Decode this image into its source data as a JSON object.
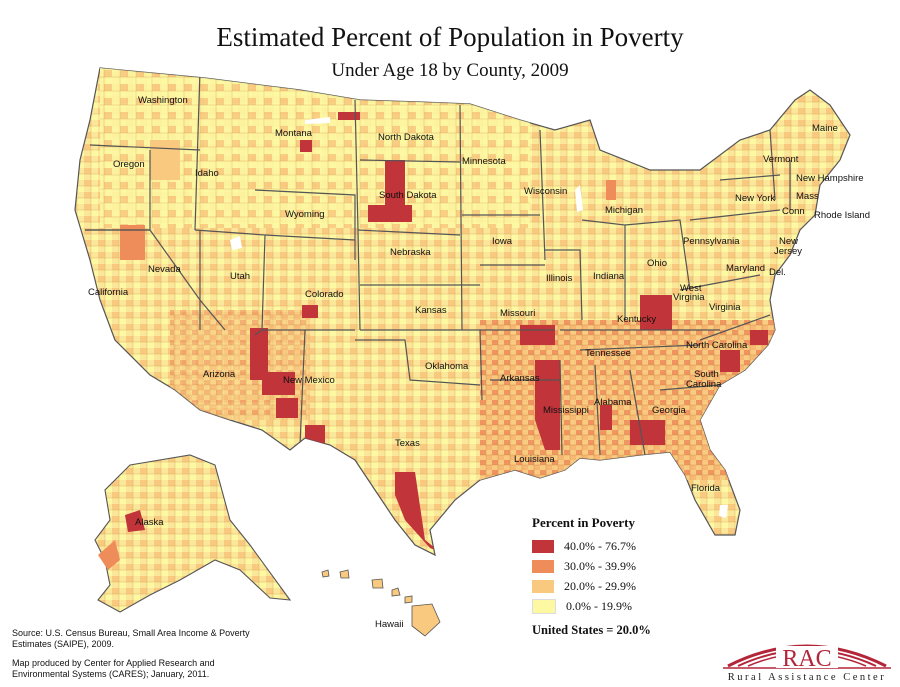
{
  "title": "Estimated Percent of Population in Poverty",
  "subtitle": "Under Age 18 by County, 2009",
  "colors": {
    "cat1": "#c0343a",
    "cat2": "#ef8d5a",
    "cat3": "#f8c97e",
    "cat4": "#fdf8a2",
    "border": "#555555",
    "logo_red": "#b3263a"
  },
  "legend": {
    "title": "Percent in Poverty",
    "items": [
      {
        "label": "40.0% - 76.7%",
        "color": "#c0343a"
      },
      {
        "label": "30.0% - 39.9%",
        "color": "#ef8d5a"
      },
      {
        "label": "20.0% - 29.9%",
        "color": "#f8c97e"
      },
      {
        "label": "0.0% - 19.9%",
        "color": "#fdf8a2"
      }
    ],
    "us_total": "United States = 20.0%"
  },
  "states": {
    "washington": "Washington",
    "oregon": "Oregon",
    "california": "California",
    "idaho": "Idaho",
    "nevada": "Nevada",
    "montana": "Montana",
    "wyoming": "Wyoming",
    "utah": "Utah",
    "arizona": "Arizona",
    "colorado": "Colorado",
    "new_mexico": "New Mexico",
    "north_dakota": "North Dakota",
    "south_dakota": "South Dakota",
    "nebraska": "Nebraska",
    "kansas": "Kansas",
    "oklahoma": "Oklahoma",
    "texas": "Texas",
    "minnesota": "Minnesota",
    "iowa": "Iowa",
    "missouri": "Missouri",
    "arkansas": "Arkansas",
    "louisiana": "Louisiana",
    "wisconsin": "Wisconsin",
    "illinois": "Illinois",
    "michigan": "Michigan",
    "indiana": "Indiana",
    "ohio": "Ohio",
    "kentucky": "Kentucky",
    "tennessee": "Tennessee",
    "mississippi": "Mississippi",
    "alabama": "Alabama",
    "georgia": "Georgia",
    "florida": "Florida",
    "south": "South",
    "carolina": "Carolina",
    "north_carolina": "North Carolina",
    "virginia": "Virginia",
    "west": "West",
    "virginia2": "Virginia",
    "pennsylvania": "Pennsylvania",
    "new_york": "New York",
    "maryland": "Maryland",
    "new": "New",
    "jersey": "Jersey",
    "del": "Del.",
    "conn": "Conn",
    "rhode_island": "Rhode Island",
    "mass": "Mass",
    "vermont": "Vermont",
    "new_hampshire": "New Hampshire",
    "maine": "Maine",
    "alaska": "Alaska",
    "hawaii": "Hawaii"
  },
  "source": "Source:  U.S. Census Bureau, Small Area Income & Poverty Estimates (SAIPE), 2009.",
  "credit": "Map produced by Center for Applied Research and Environmental Systems (CARES); January, 2011.",
  "logo": {
    "text": "RAC",
    "tagline": "Rural Assistance Center"
  }
}
